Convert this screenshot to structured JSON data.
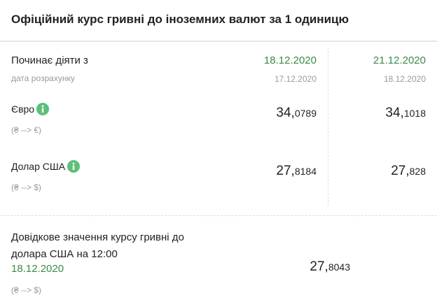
{
  "header": {
    "title": "Офіційний курс гривні до іноземних валют за 1 одиницю"
  },
  "table": {
    "start_label": "Починає діяти з",
    "calc_label": "дата розрахунку",
    "columns": [
      {
        "start_date": "18.12.2020",
        "calc_date": "17.12.2020"
      },
      {
        "start_date": "21.12.2020",
        "calc_date": "18.12.2020"
      }
    ],
    "rows": [
      {
        "name": "Євро",
        "direction": "(₴ --> €)",
        "rates": [
          {
            "integer": "34,",
            "fraction": "0789"
          },
          {
            "integer": "34,",
            "fraction": "1018"
          }
        ]
      },
      {
        "name": "Долар США",
        "direction": "(₴ --> $)",
        "rates": [
          {
            "integer": "27,",
            "fraction": "8184"
          },
          {
            "integer": "27,",
            "fraction": "828"
          }
        ]
      }
    ]
  },
  "reference": {
    "text": "Довідкове значення курсу гривні до долара США на 12:00",
    "date": "18.12.2020",
    "rate": {
      "integer": "27,",
      "fraction": "8043"
    },
    "direction": "(₴ --> $)"
  }
}
